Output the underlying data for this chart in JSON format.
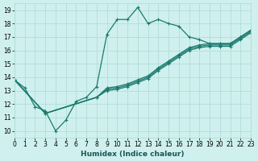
{
  "xlabel": "Humidex (Indice chaleur)",
  "bg_color": "#cff0ee",
  "grid_color": "#b0ddd8",
  "line_color": "#1a7a6e",
  "xlim": [
    0,
    23
  ],
  "ylim": [
    9.5,
    19.5
  ],
  "xticks": [
    0,
    1,
    2,
    3,
    4,
    5,
    6,
    7,
    8,
    9,
    10,
    11,
    12,
    13,
    14,
    15,
    16,
    17,
    18,
    19,
    20,
    21,
    22,
    23
  ],
  "yticks": [
    10,
    11,
    12,
    13,
    14,
    15,
    16,
    17,
    18,
    19
  ],
  "line_main_x": [
    0,
    1,
    2,
    3,
    4,
    5,
    6,
    7,
    8,
    9,
    10,
    11,
    12,
    13,
    14,
    15,
    16,
    17,
    18,
    19,
    20,
    21,
    22,
    23
  ],
  "line_main_y": [
    13.8,
    13.2,
    11.8,
    11.5,
    10.0,
    10.8,
    12.2,
    12.5,
    13.3,
    17.2,
    18.3,
    18.3,
    19.2,
    18.0,
    18.3,
    18.0,
    17.8,
    17.0,
    16.8,
    16.5,
    16.5,
    16.5,
    17.0,
    17.5
  ],
  "line_a_x": [
    0,
    3,
    8,
    9,
    10,
    11,
    12,
    13,
    14,
    15,
    16,
    17,
    18,
    19,
    20,
    21,
    22,
    23
  ],
  "line_a_y": [
    13.8,
    11.3,
    12.5,
    13.2,
    13.3,
    13.5,
    13.8,
    14.1,
    14.7,
    15.2,
    15.7,
    16.2,
    16.4,
    16.5,
    16.5,
    16.5,
    17.0,
    17.5
  ],
  "line_b_x": [
    0,
    3,
    8,
    9,
    10,
    11,
    12,
    13,
    14,
    15,
    16,
    17,
    18,
    19,
    20,
    21,
    22,
    23
  ],
  "line_b_y": [
    13.8,
    11.3,
    12.5,
    13.1,
    13.2,
    13.4,
    13.7,
    14.0,
    14.6,
    15.1,
    15.6,
    16.1,
    16.3,
    16.4,
    16.4,
    16.4,
    16.9,
    17.4
  ],
  "line_c_x": [
    0,
    3,
    8,
    9,
    10,
    11,
    12,
    13,
    14,
    15,
    16,
    17,
    18,
    19,
    20,
    21,
    22,
    23
  ],
  "line_c_y": [
    13.8,
    11.3,
    12.5,
    13.0,
    13.1,
    13.3,
    13.6,
    13.9,
    14.5,
    15.0,
    15.5,
    16.0,
    16.2,
    16.3,
    16.3,
    16.3,
    16.8,
    17.3
  ]
}
